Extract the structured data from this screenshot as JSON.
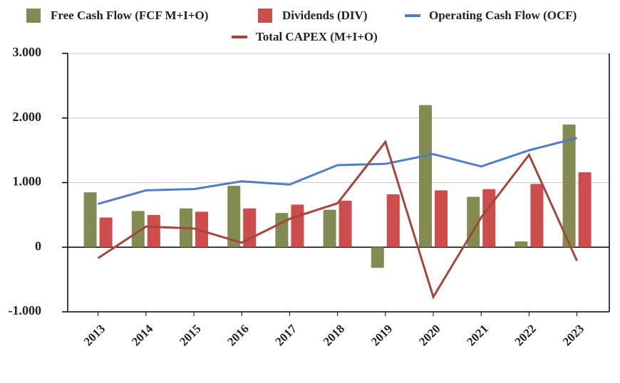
{
  "chart_data": {
    "type": "bar",
    "categories": [
      "2013",
      "2014",
      "2015",
      "2016",
      "2017",
      "2018",
      "2019",
      "2020",
      "2021",
      "2022",
      "2023"
    ],
    "series": [
      {
        "name": "Free Cash Flow (FCF M+I+O)",
        "type": "bar",
        "color": "#838a52",
        "values": [
          850,
          560,
          600,
          950,
          530,
          580,
          -320,
          2200,
          780,
          90,
          1900
        ]
      },
      {
        "name": "Dividends (DIV)",
        "type": "bar",
        "color": "#cd4d4d",
        "values": [
          460,
          500,
          550,
          600,
          660,
          720,
          820,
          880,
          900,
          980,
          1160
        ]
      },
      {
        "name": "Operating Cash Flow (OCF)",
        "type": "line",
        "color": "#4f7fc0",
        "values": [
          670,
          880,
          900,
          1020,
          970,
          1270,
          1290,
          1440,
          1250,
          1500,
          1690
        ]
      },
      {
        "name": "Total CAPEX (M+I+O)",
        "type": "line",
        "color": "#a4473a",
        "values": [
          -170,
          320,
          290,
          70,
          440,
          680,
          1630,
          -770,
          460,
          1430,
          -210
        ]
      }
    ],
    "ylim": [
      -1000,
      3000
    ],
    "yticks": [
      {
        "value": -1000,
        "label": "-1.000"
      },
      0,
      {
        "value": 1000,
        "label": "1.000"
      },
      {
        "value": 2000,
        "label": "2.000"
      },
      {
        "value": 3000,
        "label": "3.000"
      }
    ],
    "grid": true
  }
}
